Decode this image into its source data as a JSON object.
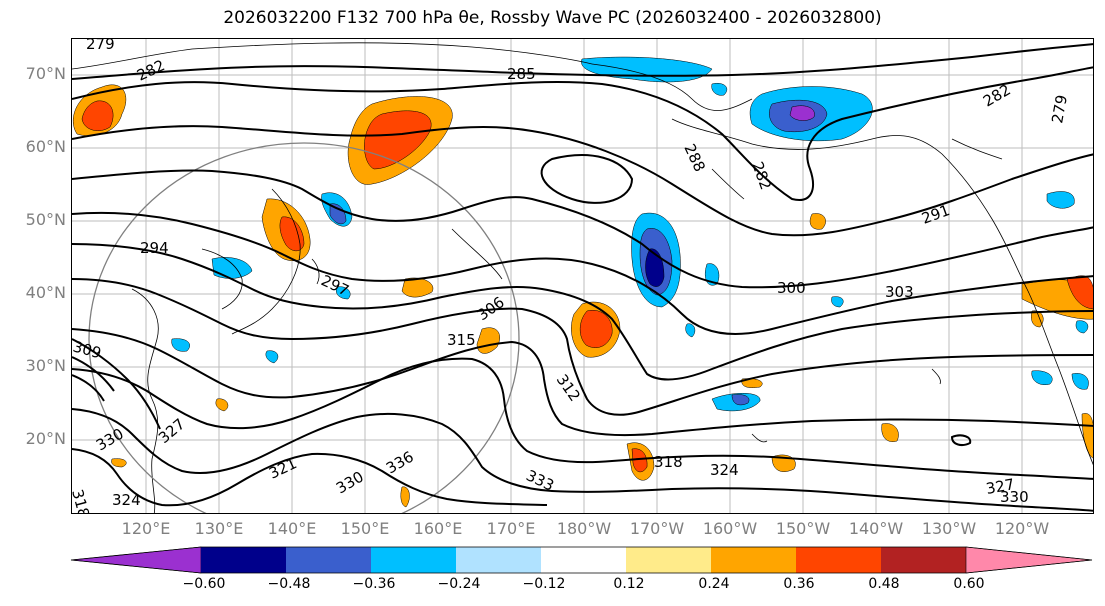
{
  "title": "2026032200 F132 700 hPa θe, Rossby Wave PC (2026032400 - 2026032800)",
  "lat_labels": [
    "70°N",
    "60°N",
    "50°N",
    "40°N",
    "30°N",
    "20°N"
  ],
  "lon_labels": [
    "120°E",
    "130°E",
    "140°E",
    "150°E",
    "160°E",
    "170°E",
    "180°W",
    "170°W",
    "160°W",
    "150°W",
    "140°W",
    "130°W",
    "120°W"
  ],
  "contour_labels": [
    "279",
    "282",
    "285",
    "288",
    "282",
    "282",
    "279",
    "294",
    "297",
    "291",
    "300",
    "303",
    "306",
    "315",
    "312",
    "309",
    "318",
    "324",
    "327",
    "330",
    "321",
    "330",
    "336",
    "333",
    "327",
    "330",
    "318",
    "324"
  ],
  "colorbar": {
    "ticks": [
      "−0.60",
      "−0.48",
      "−0.36",
      "−0.24",
      "−0.12",
      "0.12",
      "0.24",
      "0.36",
      "0.48",
      "0.60"
    ],
    "colors": [
      "#9b30d0",
      "#00008b",
      "#3a5fcd",
      "#00bfff",
      "#b0e2ff",
      "#ffffff",
      "#ffeb8a",
      "#ffa500",
      "#ff4500",
      "#b22222",
      "#ff88aa"
    ]
  }
}
